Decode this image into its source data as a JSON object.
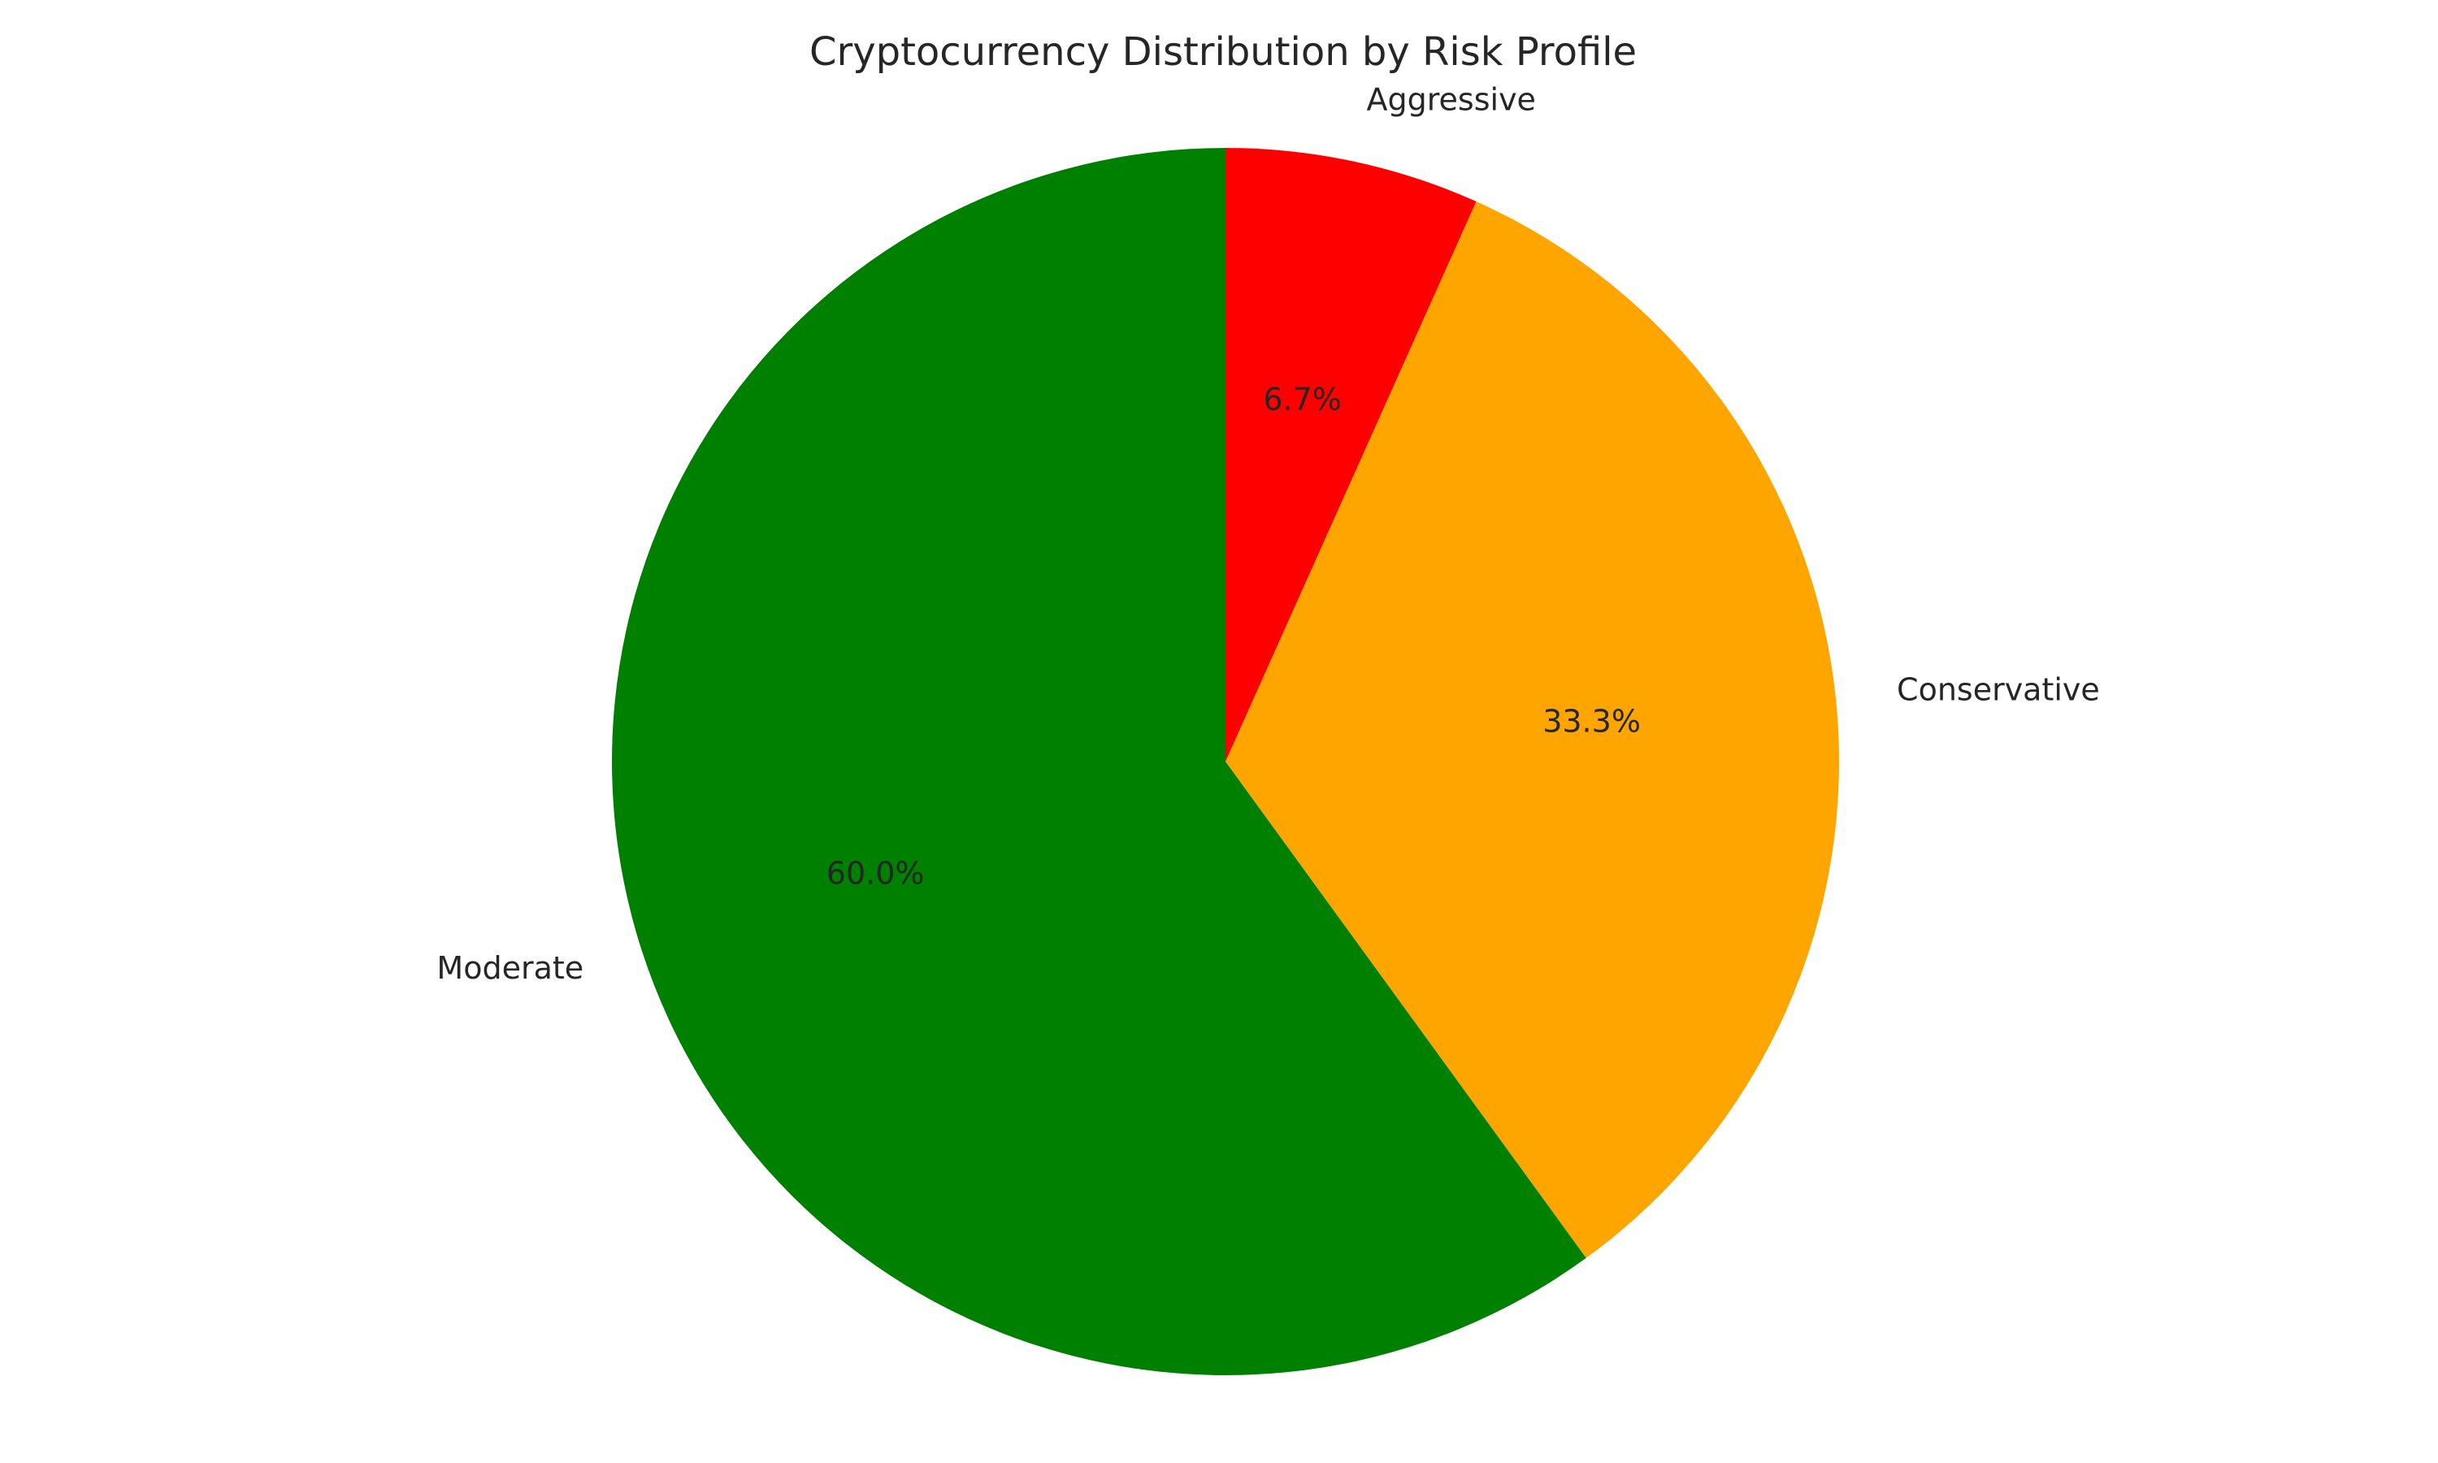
{
  "chart_data": {
    "type": "pie",
    "title": "Cryptocurrency Distribution by Risk Profile",
    "slices": [
      {
        "label": "Aggressive",
        "value": 6.7,
        "pct_label": "6.7%",
        "color": "#ff0000"
      },
      {
        "label": "Conservative",
        "value": 33.3,
        "pct_label": "33.3%",
        "color": "#ffa500"
      },
      {
        "label": "Moderate",
        "value": 60.0,
        "pct_label": "60.0%",
        "color": "#008000"
      }
    ],
    "start_angle_deg": 90,
    "direction": "clockwise"
  }
}
